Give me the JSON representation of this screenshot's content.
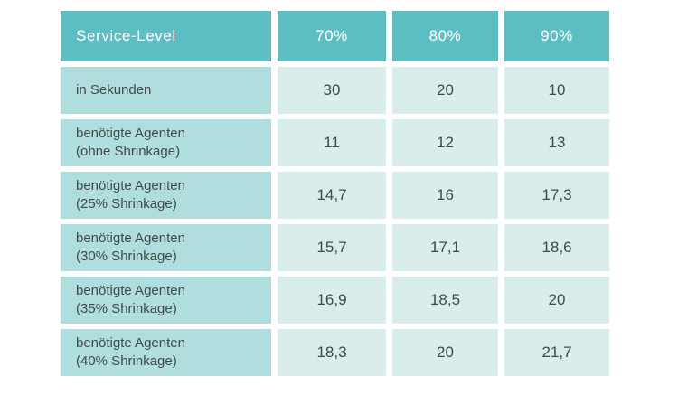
{
  "table": {
    "header": {
      "label": "Service-Level",
      "columns": [
        "70%",
        "80%",
        "90%"
      ]
    },
    "rows": [
      {
        "label": "in Sekunden",
        "label2": "",
        "values": [
          "30",
          "20",
          "10"
        ]
      },
      {
        "label": "benötigte Agenten",
        "label2": "(ohne Shrinkage)",
        "values": [
          "11",
          "12",
          "13"
        ]
      },
      {
        "label": "benötigte Agenten",
        "label2": "(25% Shrinkage)",
        "values": [
          "14,7",
          "16",
          "17,3"
        ]
      },
      {
        "label": "benötigte Agenten",
        "label2": "(30% Shrinkage)",
        "values": [
          "15,7",
          "17,1",
          "18,6"
        ]
      },
      {
        "label": "benötigte Agenten",
        "label2": "(35% Shrinkage)",
        "values": [
          "16,9",
          "18,5",
          "20"
        ]
      },
      {
        "label": "benötigte Agenten",
        "label2": "(40% Shrinkage)",
        "values": [
          "18,3",
          "20",
          "21,7"
        ]
      }
    ],
    "colors": {
      "header_bg": "#5cbec3",
      "header_text": "#ffffff",
      "label_bg": "#b0dedf",
      "value_bg": "#daeded",
      "body_text": "#3f4a48",
      "canvas_bg": "#ffffff"
    }
  }
}
